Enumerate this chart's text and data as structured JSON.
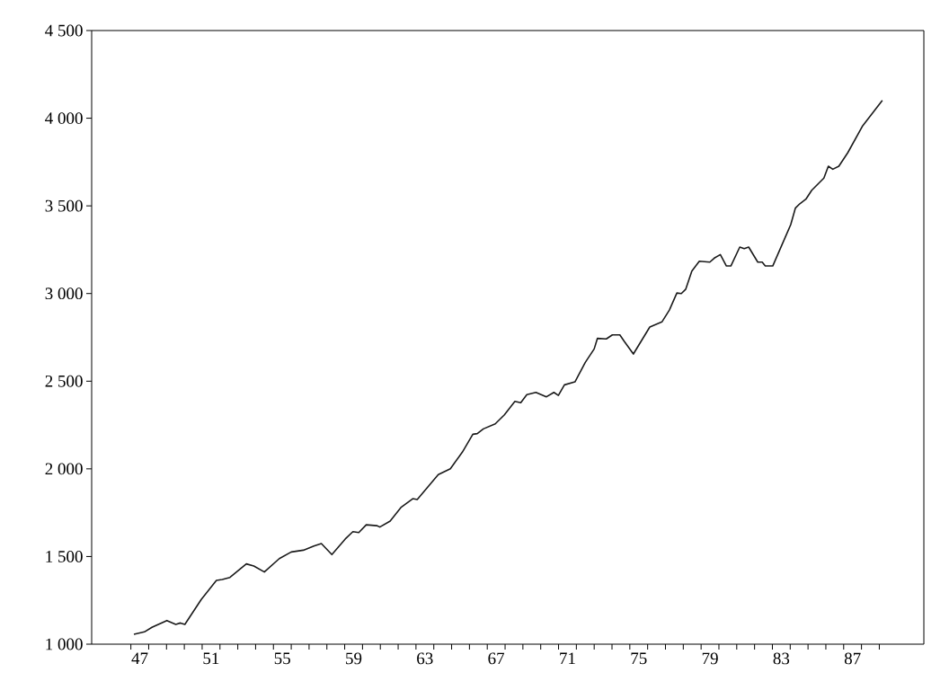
{
  "chart_data": {
    "type": "line",
    "color": "#1a1a1a",
    "line_style": "solid",
    "marker": "none",
    "grid": false,
    "x": [
      47.17,
      47.76,
      48.18,
      48.43,
      49.02,
      49.52,
      49.78,
      50.03,
      50.95,
      51.8,
      52.13,
      52.56,
      53.48,
      53.9,
      54.49,
      55.33,
      56.0,
      56.68,
      57.27,
      57.69,
      58.28,
      59.03,
      59.46,
      59.79,
      60.21,
      60.8,
      60.97,
      61.55,
      62.15,
      62.82,
      63.07,
      63.75,
      64.25,
      64.93,
      65.6,
      66.19,
      66.44,
      66.78,
      67.45,
      67.96,
      68.55,
      68.88,
      69.22,
      69.73,
      70.32,
      70.74,
      70.99,
      71.33,
      71.92,
      72.5,
      73.0,
      73.18,
      73.68,
      74.02,
      74.44,
      74.69,
      75.2,
      76.12,
      76.8,
      77.22,
      77.64,
      77.89,
      78.14,
      78.48,
      78.9,
      79.49,
      79.74,
      80.08,
      80.42,
      80.67,
      81.17,
      81.42,
      81.67,
      82.18,
      82.43,
      82.6,
      83.02,
      84.03,
      84.29,
      84.54,
      84.88,
      85.21,
      85.89,
      86.14,
      86.39,
      86.73,
      87.23,
      88.07,
      89.17
    ],
    "values": [
      1056,
      1070,
      1096,
      1108,
      1135,
      1113,
      1121,
      1113,
      1255,
      1364,
      1369,
      1381,
      1458,
      1446,
      1412,
      1488,
      1526,
      1536,
      1560,
      1574,
      1511,
      1600,
      1642,
      1637,
      1681,
      1676,
      1668,
      1702,
      1779,
      1830,
      1825,
      1907,
      1967,
      2001,
      2095,
      2197,
      2201,
      2228,
      2257,
      2308,
      2385,
      2377,
      2423,
      2436,
      2411,
      2436,
      2419,
      2479,
      2496,
      2607,
      2684,
      2744,
      2741,
      2764,
      2764,
      2727,
      2655,
      2809,
      2838,
      2906,
      3003,
      3000,
      3025,
      3128,
      3184,
      3179,
      3202,
      3222,
      3157,
      3157,
      3265,
      3256,
      3265,
      3179,
      3179,
      3157,
      3157,
      3393,
      3487,
      3512,
      3538,
      3589,
      3658,
      3726,
      3709,
      3726,
      3803,
      3957,
      4102
    ],
    "xlim": [
      44.8,
      91.5
    ],
    "ylim": [
      1000,
      4500
    ],
    "yticks": [
      {
        "value": 1000,
        "label": "1 000"
      },
      {
        "value": 1500,
        "label": "1 500"
      },
      {
        "value": 2000,
        "label": "2 000"
      },
      {
        "value": 2500,
        "label": "2 500"
      },
      {
        "value": 3000,
        "label": "3 000"
      },
      {
        "value": 3500,
        "label": "3 500"
      },
      {
        "value": 4000,
        "label": "4 000"
      },
      {
        "value": 4500,
        "label": "4 500"
      }
    ],
    "xticks": [
      {
        "value": 47,
        "label": null
      },
      {
        "value": 48,
        "label": null
      },
      {
        "value": 49,
        "label": null
      },
      {
        "value": 50,
        "label": null
      },
      {
        "value": 51,
        "label": null
      },
      {
        "value": 52,
        "label": null
      },
      {
        "value": 53,
        "label": null
      },
      {
        "value": 54,
        "label": null
      },
      {
        "value": 55,
        "label": null
      },
      {
        "value": 56,
        "label": null
      },
      {
        "value": 57,
        "label": null
      },
      {
        "value": 58,
        "label": null
      },
      {
        "value": 59,
        "label": null
      },
      {
        "value": 60,
        "label": null
      },
      {
        "value": 61,
        "label": null
      },
      {
        "value": 62,
        "label": null
      },
      {
        "value": 63,
        "label": null
      },
      {
        "value": 64,
        "label": null
      },
      {
        "value": 65,
        "label": null
      },
      {
        "value": 66,
        "label": null
      },
      {
        "value": 67,
        "label": null
      },
      {
        "value": 68,
        "label": null
      },
      {
        "value": 69,
        "label": null
      },
      {
        "value": 70,
        "label": null
      },
      {
        "value": 71,
        "label": null
      },
      {
        "value": 72,
        "label": null
      },
      {
        "value": 73,
        "label": null
      },
      {
        "value": 74,
        "label": null
      },
      {
        "value": 75,
        "label": null
      },
      {
        "value": 76,
        "label": null
      },
      {
        "value": 77,
        "label": null
      },
      {
        "value": 78,
        "label": null
      },
      {
        "value": 79,
        "label": null
      },
      {
        "value": 80,
        "label": null
      },
      {
        "value": 81,
        "label": null
      },
      {
        "value": 82,
        "label": null
      },
      {
        "value": 83,
        "label": null
      },
      {
        "value": 84,
        "label": null
      },
      {
        "value": 85,
        "label": null
      },
      {
        "value": 86,
        "label": null
      },
      {
        "value": 87,
        "label": null
      },
      {
        "value": 88,
        "label": null
      },
      {
        "value": 89,
        "label": null
      },
      {
        "value": 47.5,
        "label": "47"
      },
      {
        "value": 51.5,
        "label": "51"
      },
      {
        "value": 55.5,
        "label": "55"
      },
      {
        "value": 59.5,
        "label": "59"
      },
      {
        "value": 63.5,
        "label": "63"
      },
      {
        "value": 67.5,
        "label": "67"
      },
      {
        "value": 71.5,
        "label": "71"
      },
      {
        "value": 75.5,
        "label": "75"
      },
      {
        "value": 79.5,
        "label": "79"
      },
      {
        "value": 83.5,
        "label": "83"
      },
      {
        "value": 87.5,
        "label": "87"
      }
    ]
  }
}
